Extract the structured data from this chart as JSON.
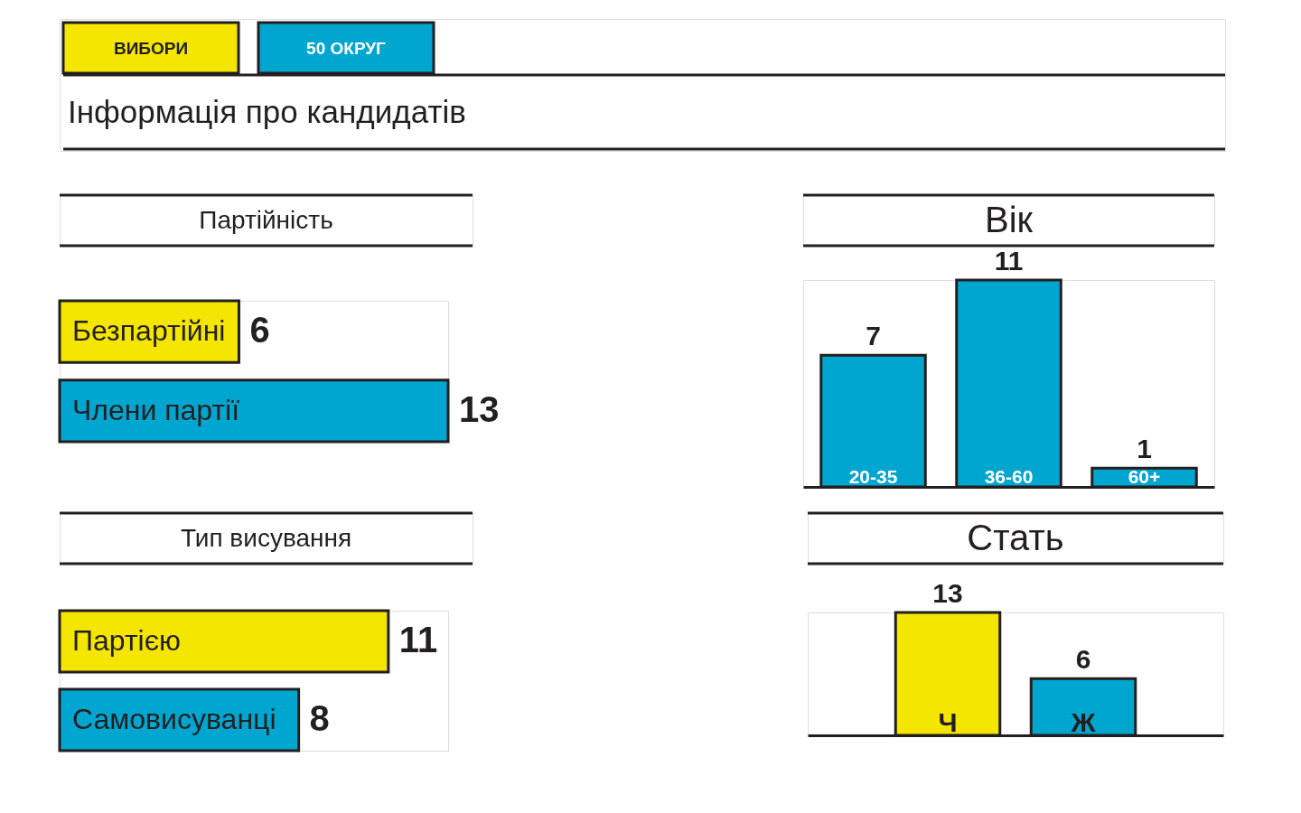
{
  "chart_data": [
    {
      "type": "other",
      "title": "Інформація про кандидатів",
      "annotations": [
        "ВИБОРИ",
        "50 ОКРУГ"
      ]
    },
    {
      "type": "bar",
      "orientation": "horizontal",
      "title": "Партійність",
      "categories": [
        "Безпартійні",
        "Члени партії"
      ],
      "values": [
        6,
        13
      ],
      "colors": [
        "#f4e600",
        "#00a6cf"
      ],
      "data_labels": true
    },
    {
      "type": "bar",
      "title": "Вік",
      "categories": [
        "20-35",
        "36-60",
        "60+"
      ],
      "values": [
        7,
        11,
        1
      ],
      "colors": [
        "#00a6cf",
        "#00a6cf",
        "#00a6cf"
      ],
      "data_labels": true
    },
    {
      "type": "bar",
      "orientation": "horizontal",
      "title": "Тип висування",
      "categories": [
        "Партією",
        "Самовисуванці"
      ],
      "values": [
        11,
        8
      ],
      "colors": [
        "#f4e600",
        "#00a6cf"
      ],
      "data_labels": true
    },
    {
      "type": "bar",
      "title": "Стать",
      "categories": [
        "Ч",
        "Ж"
      ],
      "values": [
        13,
        6
      ],
      "colors": [
        "#f4e600",
        "#00a6cf"
      ],
      "data_labels": true
    }
  ]
}
